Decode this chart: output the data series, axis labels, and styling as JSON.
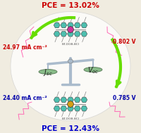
{
  "bg_color": "#f0ece0",
  "top_pce_text": "PCE = 13.02%",
  "top_pce_color": "#cc0000",
  "bottom_pce_text": "PCE = 12.43%",
  "bottom_pce_color": "#0000cc",
  "left_top_jsc": "24.97 mA cm⁻²",
  "left_top_color": "#cc0000",
  "right_top_voc": "0.802 V",
  "right_top_color": "#cc0000",
  "left_bot_jsc": "24.40 mA cm⁻²",
  "left_bot_color": "#0000aa",
  "right_bot_voc": "0.785 V",
  "right_bot_color": "#0000aa",
  "label_color": "#222222",
  "arrow_color": "#66dd00",
  "teal_color": "#4dbfaf",
  "pink_chain_color": "#ff69b4",
  "top_mol_center_color": "#cc3399",
  "bottom_mol_center_color": "#d4a017",
  "molecule_gray": "#777777",
  "balance_color": "#aabbcc",
  "pan_color": "#88bb88",
  "top_mol_label": "BT-DGB-BCI",
  "bottom_mol_label": "BT-DGB-BCI"
}
